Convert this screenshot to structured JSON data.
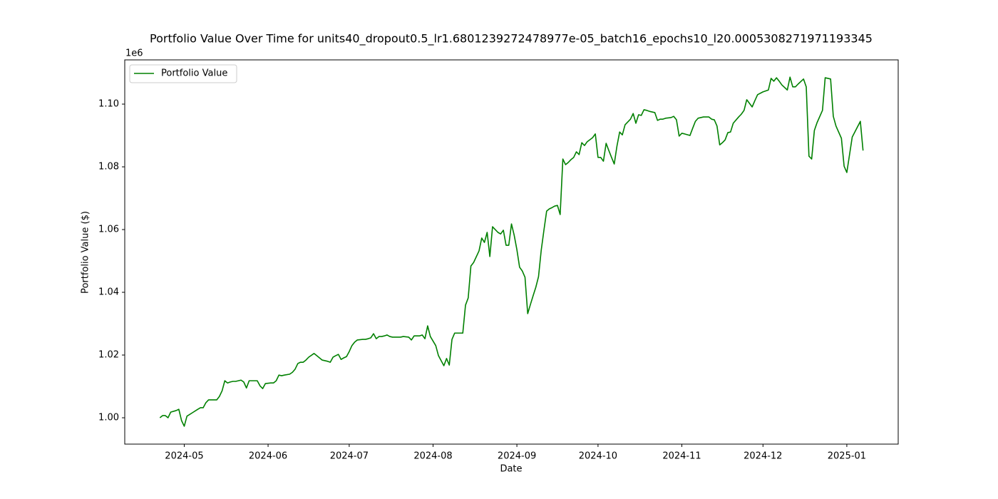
{
  "chart_data": {
    "type": "line",
    "title": "Portfolio Value Over Time for units40_dropout0.5_lr1.6801239272478977e-05_batch16_epochs10_l20.0005308271971193345",
    "x_label": "Date",
    "y_label": "Portfolio Value ($)",
    "y_offset_label": "1e6",
    "legend": "upper left",
    "xlim": [
      "2024-04-09",
      "2025-01-20"
    ],
    "xticks": [
      {
        "value": "2024-05-01",
        "label": "2024-05"
      },
      {
        "value": "2024-06-01",
        "label": "2024-06"
      },
      {
        "value": "2024-07-01",
        "label": "2024-07"
      },
      {
        "value": "2024-08-01",
        "label": "2024-08"
      },
      {
        "value": "2024-09-01",
        "label": "2024-09"
      },
      {
        "value": "2024-10-01",
        "label": "2024-10"
      },
      {
        "value": "2024-11-01",
        "label": "2024-11"
      },
      {
        "value": "2024-12-01",
        "label": "2024-12"
      },
      {
        "value": "2025-01-01",
        "label": "2025-01"
      }
    ],
    "ylim": [
      991600,
      1114100
    ],
    "yticks": [
      {
        "value": 1000000,
        "label": "1.00"
      },
      {
        "value": 1020000,
        "label": "1.02"
      },
      {
        "value": 1040000,
        "label": "1.04"
      },
      {
        "value": 1060000,
        "label": "1.06"
      },
      {
        "value": 1080000,
        "label": "1.08"
      },
      {
        "value": 1100000,
        "label": "1.10"
      }
    ],
    "x": [
      "2024-04-22",
      "2024-04-23",
      "2024-04-24",
      "2024-04-25",
      "2024-04-26",
      "2024-04-28",
      "2024-04-29",
      "2024-04-30",
      "2024-05-01",
      "2024-05-02",
      "2024-05-04",
      "2024-05-06",
      "2024-05-07",
      "2024-05-08",
      "2024-05-09",
      "2024-05-10",
      "2024-05-11",
      "2024-05-13",
      "2024-05-14",
      "2024-05-15",
      "2024-05-16",
      "2024-05-17",
      "2024-05-18",
      "2024-05-19",
      "2024-05-20",
      "2024-05-22",
      "2024-05-23",
      "2024-05-24",
      "2024-05-25",
      "2024-05-26",
      "2024-05-27",
      "2024-05-28",
      "2024-05-29",
      "2024-05-30",
      "2024-05-31",
      "2024-06-02",
      "2024-06-03",
      "2024-06-04",
      "2024-06-05",
      "2024-06-06",
      "2024-06-07",
      "2024-06-09",
      "2024-06-10",
      "2024-06-11",
      "2024-06-12",
      "2024-06-13",
      "2024-06-14",
      "2024-06-15",
      "2024-06-16",
      "2024-06-18",
      "2024-06-19",
      "2024-06-20",
      "2024-06-21",
      "2024-06-23",
      "2024-06-24",
      "2024-06-25",
      "2024-06-26",
      "2024-06-27",
      "2024-06-28",
      "2024-06-29",
      "2024-06-30",
      "2024-07-01",
      "2024-07-02",
      "2024-07-03",
      "2024-07-04",
      "2024-07-06",
      "2024-07-07",
      "2024-07-08",
      "2024-07-09",
      "2024-07-10",
      "2024-07-11",
      "2024-07-12",
      "2024-07-13",
      "2024-07-14",
      "2024-07-15",
      "2024-07-16",
      "2024-07-17",
      "2024-07-19",
      "2024-07-20",
      "2024-07-21",
      "2024-07-23",
      "2024-07-24",
      "2024-07-25",
      "2024-07-27",
      "2024-07-28",
      "2024-07-29",
      "2024-07-30",
      "2024-07-31",
      "2024-08-02",
      "2024-08-03",
      "2024-08-05",
      "2024-08-06",
      "2024-08-07",
      "2024-08-08",
      "2024-08-09",
      "2024-08-10",
      "2024-08-11",
      "2024-08-12",
      "2024-08-13",
      "2024-08-14",
      "2024-08-15",
      "2024-08-16",
      "2024-08-18",
      "2024-08-19",
      "2024-08-20",
      "2024-08-21",
      "2024-08-22",
      "2024-08-23",
      "2024-08-24",
      "2024-08-25",
      "2024-08-26",
      "2024-08-27",
      "2024-08-28",
      "2024-08-29",
      "2024-08-30",
      "2024-08-31",
      "2024-09-01",
      "2024-09-02",
      "2024-09-03",
      "2024-09-04",
      "2024-09-05",
      "2024-09-06",
      "2024-09-07",
      "2024-09-08",
      "2024-09-09",
      "2024-09-10",
      "2024-09-11",
      "2024-09-12",
      "2024-09-13",
      "2024-09-14",
      "2024-09-15",
      "2024-09-16",
      "2024-09-17",
      "2024-09-18",
      "2024-09-19",
      "2024-09-20",
      "2024-09-21",
      "2024-09-22",
      "2024-09-23",
      "2024-09-24",
      "2024-09-25",
      "2024-09-26",
      "2024-09-27",
      "2024-09-29",
      "2024-09-30",
      "2024-10-01",
      "2024-10-02",
      "2024-10-03",
      "2024-10-04",
      "2024-10-05",
      "2024-10-06",
      "2024-10-07",
      "2024-10-08",
      "2024-10-09",
      "2024-10-10",
      "2024-10-11",
      "2024-10-13",
      "2024-10-14",
      "2024-10-15",
      "2024-10-16",
      "2024-10-17",
      "2024-10-18",
      "2024-10-19",
      "2024-10-20",
      "2024-10-22",
      "2024-10-23",
      "2024-10-24",
      "2024-10-25",
      "2024-10-26",
      "2024-10-28",
      "2024-10-29",
      "2024-10-30",
      "2024-10-31",
      "2024-11-01",
      "2024-11-02",
      "2024-11-04",
      "2024-11-05",
      "2024-11-06",
      "2024-11-07",
      "2024-11-09",
      "2024-11-10",
      "2024-11-11",
      "2024-11-12",
      "2024-11-13",
      "2024-11-14",
      "2024-11-15",
      "2024-11-16",
      "2024-11-17",
      "2024-11-18",
      "2024-11-19",
      "2024-11-20",
      "2024-11-22",
      "2024-11-23",
      "2024-11-24",
      "2024-11-25",
      "2024-11-27",
      "2024-11-28",
      "2024-11-29",
      "2024-12-01",
      "2024-12-03",
      "2024-12-04",
      "2024-12-05",
      "2024-12-06",
      "2024-12-07",
      "2024-12-08",
      "2024-12-10",
      "2024-12-11",
      "2024-12-12",
      "2024-12-13",
      "2024-12-14",
      "2024-12-16",
      "2024-12-17",
      "2024-12-18",
      "2024-12-19",
      "2024-12-20",
      "2024-12-21",
      "2024-12-23",
      "2024-12-24",
      "2024-12-25",
      "2024-12-26",
      "2024-12-27",
      "2024-12-28",
      "2024-12-30",
      "2024-12-31",
      "2025-01-01",
      "2025-01-03",
      "2025-01-06",
      "2025-01-07"
    ],
    "series": [
      {
        "name": "Portfolio Value",
        "color": "#008000",
        "values": [
          1000000,
          1000700,
          1000700,
          1000000,
          1001800,
          1002300,
          1002700,
          999100,
          997300,
          1000500,
          1001600,
          1002700,
          1003200,
          1003200,
          1004800,
          1005700,
          1005700,
          1005700,
          1006800,
          1008600,
          1011800,
          1011100,
          1011400,
          1011600,
          1011600,
          1012000,
          1011400,
          1009500,
          1011800,
          1011800,
          1011800,
          1011800,
          1010200,
          1009300,
          1010900,
          1011100,
          1011100,
          1011800,
          1013600,
          1013400,
          1013600,
          1013900,
          1014500,
          1015500,
          1017300,
          1017700,
          1017700,
          1018400,
          1019300,
          1020500,
          1019800,
          1019100,
          1018400,
          1018000,
          1017700,
          1019300,
          1019800,
          1020200,
          1018600,
          1019100,
          1019500,
          1021100,
          1023000,
          1024100,
          1024800,
          1025000,
          1025000,
          1025200,
          1025500,
          1026800,
          1025200,
          1025900,
          1025900,
          1026100,
          1026400,
          1025900,
          1025700,
          1025700,
          1025700,
          1025900,
          1025700,
          1024800,
          1026100,
          1026100,
          1026400,
          1025200,
          1029300,
          1025900,
          1023000,
          1019800,
          1016600,
          1018900,
          1016800,
          1025000,
          1027000,
          1027000,
          1027000,
          1027000,
          1035900,
          1038200,
          1048400,
          1049500,
          1053200,
          1057300,
          1055900,
          1059100,
          1051400,
          1060900,
          1060000,
          1059100,
          1058600,
          1059800,
          1055000,
          1055000,
          1061800,
          1058200,
          1053600,
          1048000,
          1046800,
          1044800,
          1033200,
          1036100,
          1038900,
          1041600,
          1045000,
          1053400,
          1059800,
          1065900,
          1066600,
          1067000,
          1067500,
          1067700,
          1064800,
          1082500,
          1080700,
          1081400,
          1082300,
          1083000,
          1084800,
          1083900,
          1087700,
          1086800,
          1088000,
          1089300,
          1090500,
          1083000,
          1083000,
          1081800,
          1087500,
          1085200,
          1083000,
          1080900,
          1086600,
          1091100,
          1090200,
          1093400,
          1095200,
          1097000,
          1093900,
          1096600,
          1096400,
          1098200,
          1098000,
          1097700,
          1097300,
          1094800,
          1095200,
          1095200,
          1095500,
          1095700,
          1096100,
          1095000,
          1089800,
          1090700,
          1090500,
          1090000,
          1092300,
          1094500,
          1095500,
          1095900,
          1095900,
          1095900,
          1095200,
          1095000,
          1093000,
          1087000,
          1087700,
          1088600,
          1090900,
          1091100,
          1093900,
          1095900,
          1096800,
          1098000,
          1101400,
          1099100,
          1101100,
          1103000,
          1103900,
          1104500,
          1108200,
          1107300,
          1108400,
          1107300,
          1106100,
          1104500,
          1108600,
          1105500,
          1105500,
          1106400,
          1108000,
          1105500,
          1083400,
          1082500,
          1091600,
          1094100,
          1098000,
          1108400,
          1108200,
          1108000,
          1096100,
          1093000,
          1089100,
          1080200,
          1078200,
          1089500,
          1094500,
          1085200
        ]
      }
    ]
  }
}
